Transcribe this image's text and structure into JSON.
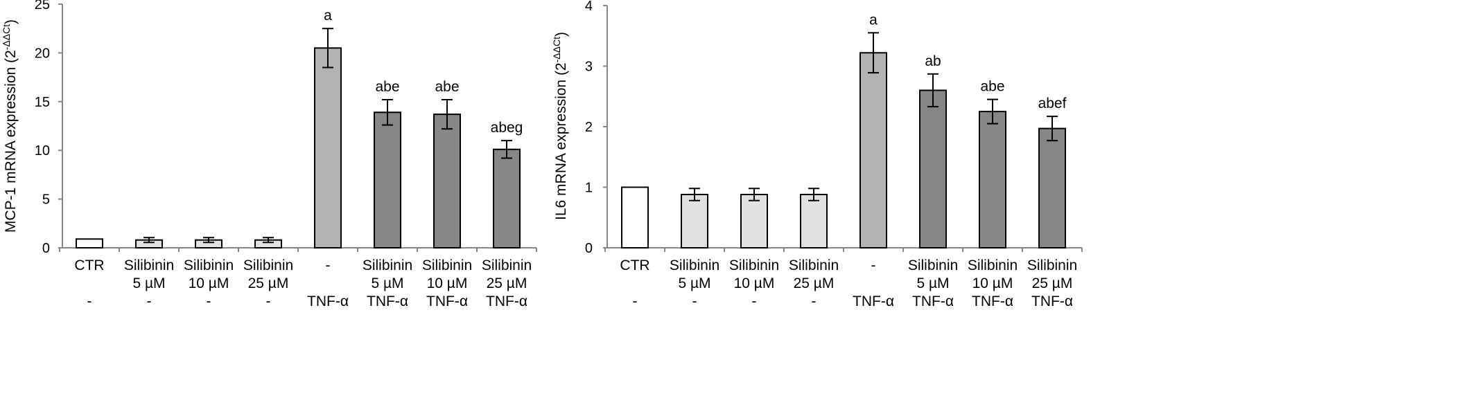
{
  "chart_data": [
    {
      "type": "bar",
      "ylabel_main": "MCP-1 mRNA expression (2",
      "ylabel_sup": "-ΔΔCt",
      "ylabel_close": ")",
      "ylim": [
        0,
        25
      ],
      "yticks": [
        0,
        5,
        10,
        15,
        20,
        25
      ],
      "grid": false,
      "categories": [
        [
          "CTR",
          "",
          "-"
        ],
        [
          "Silibinin",
          "5 µM",
          "-"
        ],
        [
          "Silibinin",
          "10 µM",
          "-"
        ],
        [
          "Silibinin",
          "25 µM",
          "-"
        ],
        [
          "-",
          "",
          "TNF-α"
        ],
        [
          "Silibinin",
          "5 µM",
          "TNF-α"
        ],
        [
          "Silibinin",
          "10 µM",
          "TNF-α"
        ],
        [
          "Silibinin",
          "25 µM",
          "TNF-α"
        ]
      ],
      "values": [
        0.9,
        0.8,
        0.8,
        0.8,
        20.5,
        13.9,
        13.7,
        10.1
      ],
      "errors": [
        0,
        0.25,
        0.25,
        0.25,
        2.0,
        1.3,
        1.5,
        0.9
      ],
      "annotations": [
        "",
        "",
        "",
        "",
        "a",
        "abe",
        "abe",
        "abeg"
      ],
      "bar_colors": [
        "#ffffff",
        "#e1e1e1",
        "#e1e1e1",
        "#e1e1e1",
        "#b3b3b3",
        "#878787",
        "#878787",
        "#878787"
      ]
    },
    {
      "type": "bar",
      "ylabel_main": "IL6 mRNA expression (2",
      "ylabel_sup": "-ΔΔCt",
      "ylabel_close": ")",
      "ylim": [
        0,
        4
      ],
      "yticks": [
        0,
        1,
        2,
        3,
        4
      ],
      "grid": false,
      "categories": [
        [
          "CTR",
          "",
          "-"
        ],
        [
          "Silibinin",
          "5 µM",
          "-"
        ],
        [
          "Silibinin",
          "10 µM",
          "-"
        ],
        [
          "Silibinin",
          "25 µM",
          "-"
        ],
        [
          "-",
          "",
          "TNF-α"
        ],
        [
          "Silibinin",
          "5 µM",
          "TNF-α"
        ],
        [
          "Silibinin",
          "10 µM",
          "TNF-α"
        ],
        [
          "Silibinin",
          "25 µM",
          "TNF-α"
        ]
      ],
      "values": [
        1.0,
        0.88,
        0.88,
        0.88,
        3.22,
        2.6,
        2.25,
        1.97
      ],
      "errors": [
        0,
        0.1,
        0.1,
        0.1,
        0.33,
        0.27,
        0.2,
        0.2
      ],
      "annotations": [
        "",
        "",
        "",
        "",
        "a",
        "ab",
        "abe",
        "abef"
      ],
      "bar_colors": [
        "#ffffff",
        "#e1e1e1",
        "#e1e1e1",
        "#e1e1e1",
        "#b3b3b3",
        "#878787",
        "#878787",
        "#878787"
      ]
    }
  ]
}
